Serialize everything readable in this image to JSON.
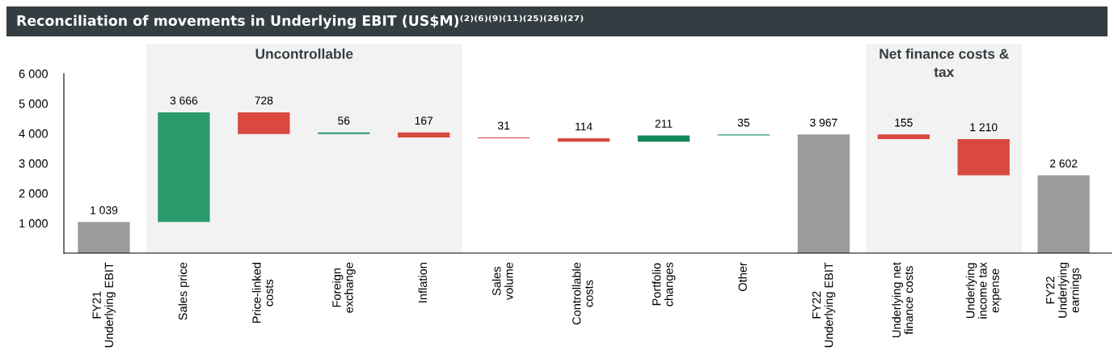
{
  "chart_data": {
    "type": "bar",
    "title": "Reconciliation of movements in Underlying EBIT (US$M)⁽²⁾⁽⁶⁾⁽⁹⁾⁽¹¹⁾⁽²⁵⁾⁽²⁶⁾⁽²⁷⁾",
    "categories": [
      "FY21\nUnderlying EBIT",
      "Sales price",
      "Price-linked\ncosts",
      "Foreign\nexchange",
      "Inflation",
      "Sales\nvolume",
      "Controllable\ncosts",
      "Portfolio\nchanges",
      "Other",
      "FY22\nUnderlying EBIT",
      "Underlying net\nfinance costs",
      "Underlying\nincome tax\nexpense",
      "FY22\nUnderlying\nearnings"
    ],
    "values": [
      1039,
      3666,
      -728,
      56,
      -167,
      -31,
      -114,
      211,
      35,
      3967,
      -155,
      -1210,
      2602
    ],
    "base": [
      0,
      1039,
      4705,
      3977,
      4033,
      3866,
      3835,
      3721,
      3932,
      0,
      3967,
      3812,
      0
    ],
    "colors": [
      "#9a9c9c",
      "#2a9a6c",
      "#d9493f",
      "#2a9a6c",
      "#d9493f",
      "#d9493f",
      "#d9493f",
      "#15895a",
      "#2a9a6c",
      "#9a9c9c",
      "#d9493f",
      "#d9493f",
      "#9a9c9c"
    ],
    "value_labels": [
      "1 039",
      "3 666",
      "728",
      "56",
      "167",
      "31",
      "114",
      "211",
      "35",
      "3 967",
      "155",
      "1 210",
      "2 602"
    ],
    "ylim": [
      0,
      6000
    ],
    "yticks": [
      {
        "value": 0,
        "label": null
      },
      {
        "value": 1000,
        "label": "1 000"
      },
      {
        "value": 2000,
        "label": "2 000"
      },
      {
        "value": 3000,
        "label": "3 000"
      },
      {
        "value": 4000,
        "label": "4 000"
      },
      {
        "value": 5000,
        "label": "5 000"
      },
      {
        "value": 6000,
        "label": "6 000"
      }
    ],
    "bands": [
      {
        "axis": "x",
        "from": "Sales price",
        "to": "Inflation",
        "label": "Uncontrollable",
        "color": "#f2f2f2"
      },
      {
        "axis": "x",
        "from": "Underlying net\nfinance costs",
        "to": "Underlying\nincome tax\nexpense",
        "label": "Net finance costs &\ntax",
        "color": "#f2f2f2"
      }
    ],
    "grid": false,
    "legend": false
  }
}
